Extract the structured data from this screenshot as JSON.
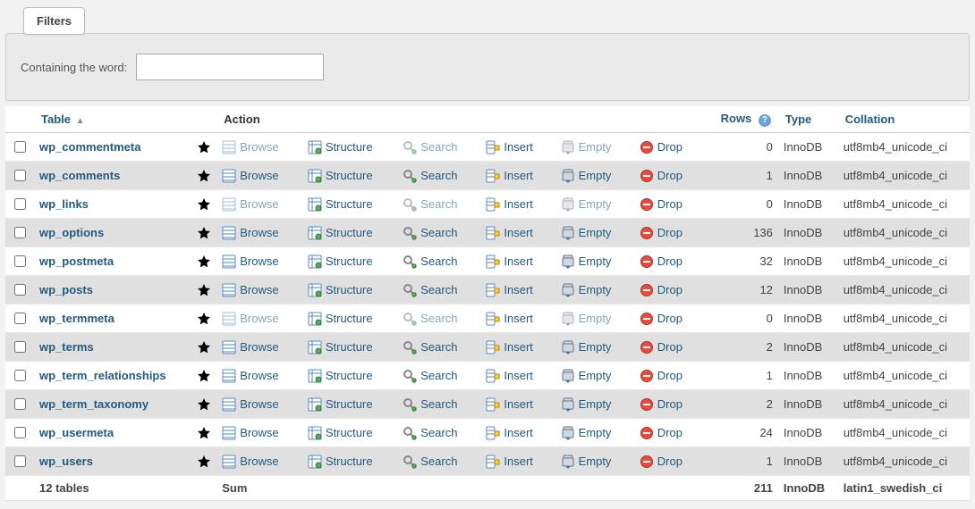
{
  "filters": {
    "tab_label": "Filters",
    "containing_label": "Containing the word:",
    "input_value": ""
  },
  "table": {
    "headers": {
      "table": "Table",
      "action": "Action",
      "rows": "Rows",
      "type": "Type",
      "collation": "Collation"
    },
    "action_labels": {
      "browse": "Browse",
      "structure": "Structure",
      "search": "Search",
      "insert": "Insert",
      "empty": "Empty",
      "drop": "Drop"
    },
    "rows": [
      {
        "name": "wp_commentmeta",
        "rows": 0,
        "type": "InnoDB",
        "collation": "utf8mb4_unicode_ci"
      },
      {
        "name": "wp_comments",
        "rows": 1,
        "type": "InnoDB",
        "collation": "utf8mb4_unicode_ci"
      },
      {
        "name": "wp_links",
        "rows": 0,
        "type": "InnoDB",
        "collation": "utf8mb4_unicode_ci"
      },
      {
        "name": "wp_options",
        "rows": 136,
        "type": "InnoDB",
        "collation": "utf8mb4_unicode_ci"
      },
      {
        "name": "wp_postmeta",
        "rows": 32,
        "type": "InnoDB",
        "collation": "utf8mb4_unicode_ci"
      },
      {
        "name": "wp_posts",
        "rows": 12,
        "type": "InnoDB",
        "collation": "utf8mb4_unicode_ci"
      },
      {
        "name": "wp_termmeta",
        "rows": 0,
        "type": "InnoDB",
        "collation": "utf8mb4_unicode_ci"
      },
      {
        "name": "wp_terms",
        "rows": 2,
        "type": "InnoDB",
        "collation": "utf8mb4_unicode_ci"
      },
      {
        "name": "wp_term_relationships",
        "rows": 1,
        "type": "InnoDB",
        "collation": "utf8mb4_unicode_ci"
      },
      {
        "name": "wp_term_taxonomy",
        "rows": 2,
        "type": "InnoDB",
        "collation": "utf8mb4_unicode_ci"
      },
      {
        "name": "wp_usermeta",
        "rows": 24,
        "type": "InnoDB",
        "collation": "utf8mb4_unicode_ci"
      },
      {
        "name": "wp_users",
        "rows": 1,
        "type": "InnoDB",
        "collation": "utf8mb4_unicode_ci"
      }
    ],
    "summary": {
      "count_label": "12 tables",
      "action_label": "Sum",
      "rows": 211,
      "type": "InnoDB",
      "collation": "latin1_swedish_ci"
    }
  }
}
